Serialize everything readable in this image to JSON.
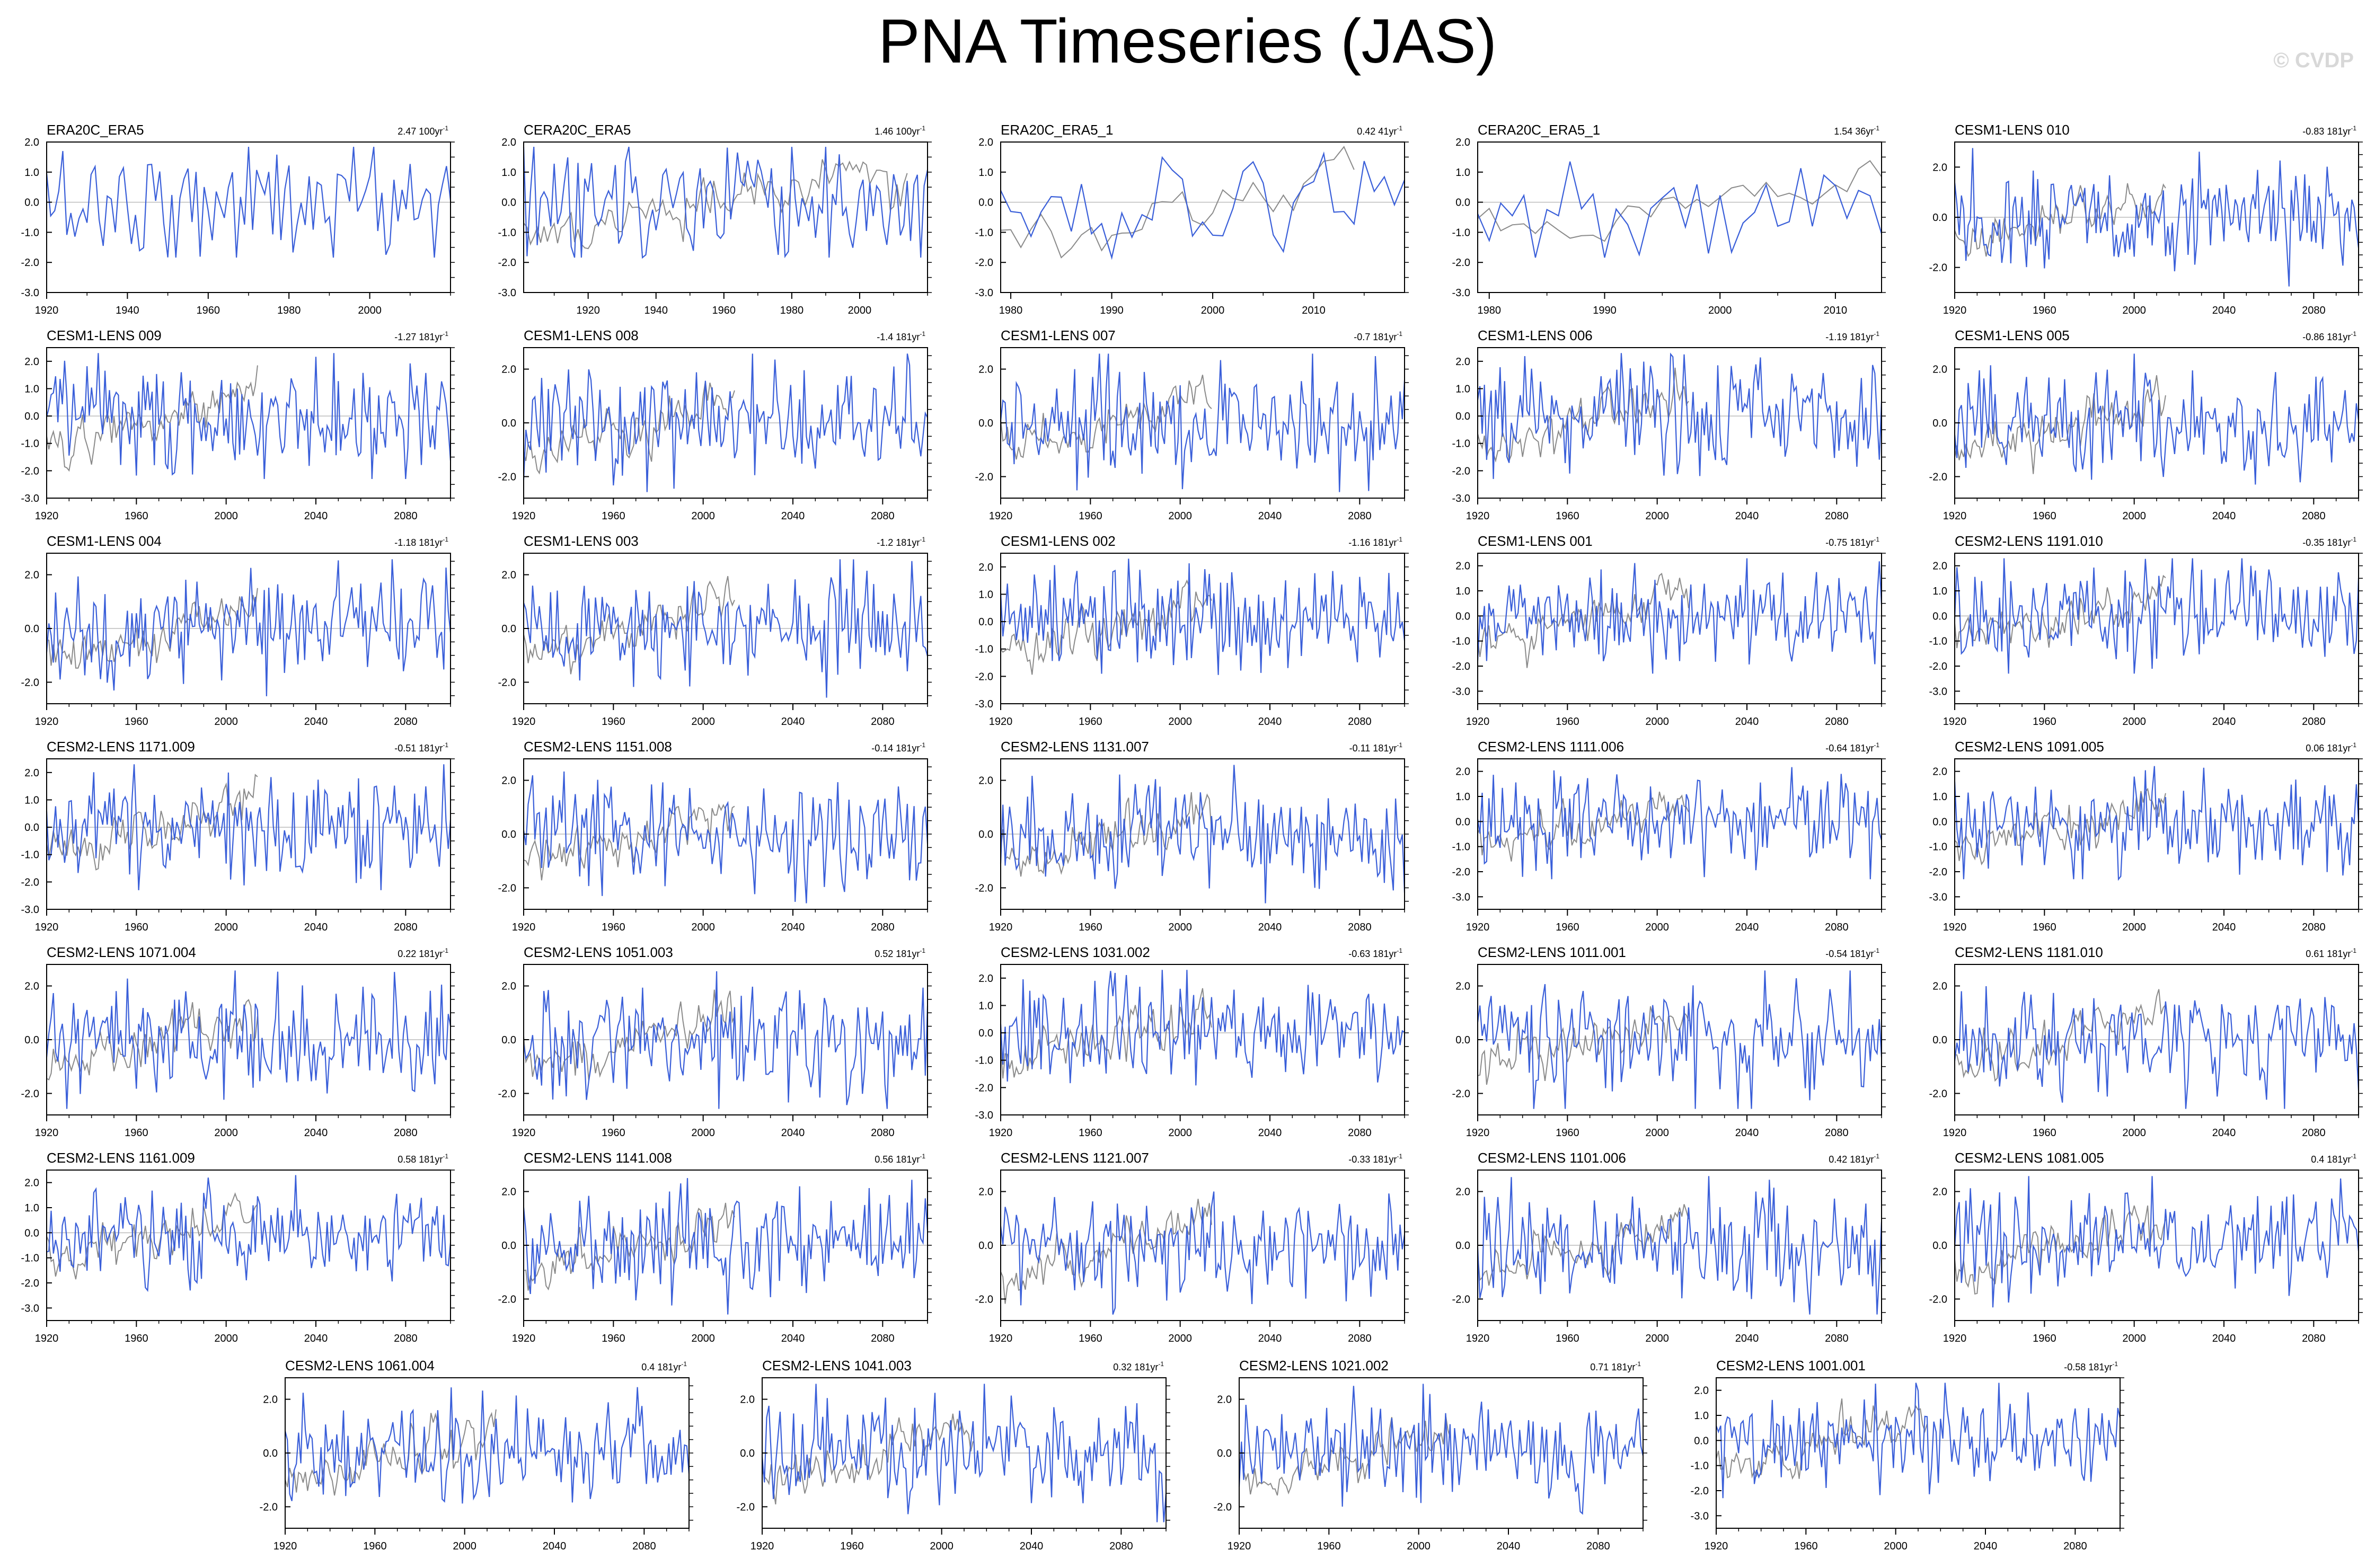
{
  "title": "PNA Timeseries (JAS)",
  "credit": "© CVDP",
  "colors": {
    "observed": "#3a5fd9",
    "reference": "#8a8a8a",
    "zero_line": "#bbbbbb",
    "frame": "#000000"
  },
  "chart_data": [
    {
      "type": "line",
      "name": "ERA20C_ERA5",
      "trend": "2.47 100yr",
      "x_range": [
        1920,
        2020
      ],
      "x_ticks": [
        1920,
        1940,
        1960,
        1980,
        2000
      ],
      "ylim": [
        -3,
        2
      ],
      "y_ticks": [
        -3,
        -2,
        -1,
        0,
        1,
        2
      ],
      "y_tick_labels": [
        "-3.0",
        "-2.0",
        "-1.0",
        "0.0",
        "1.0",
        "2.0"
      ],
      "series_shown": [
        "observed"
      ]
    },
    {
      "type": "line",
      "name": "CERA20C_ERA5",
      "trend": "1.46 100yr",
      "x_range": [
        1901,
        2020
      ],
      "x_ticks": [
        1920,
        1940,
        1960,
        1980,
        2000
      ],
      "ylim": [
        -3,
        2
      ],
      "y_ticks": [
        -3,
        -2,
        -1,
        0,
        1,
        2
      ],
      "y_tick_labels": [
        "-3.0",
        "-2.0",
        "-1.0",
        "0.0",
        "1.0",
        "2.0"
      ],
      "series_shown": [
        "observed",
        "reference"
      ]
    },
    {
      "type": "line",
      "name": "ERA20C_ERA5_1",
      "trend": "0.42 41yr",
      "x_range": [
        1979,
        2019
      ],
      "x_ticks": [
        1980,
        1990,
        2000,
        2010
      ],
      "ylim": [
        -3,
        2
      ],
      "y_ticks": [
        -3,
        -2,
        -1,
        0,
        1,
        2
      ],
      "y_tick_labels": [
        "-3.0",
        "-2.0",
        "-1.0",
        "0.0",
        "1.0",
        "2.0"
      ],
      "series_shown": [
        "observed",
        "reference"
      ]
    },
    {
      "type": "line",
      "name": "CERA20C_ERA5_1",
      "trend": "1.54 36yr",
      "x_range": [
        1979,
        2014
      ],
      "x_ticks": [
        1980,
        1990,
        2000,
        2010
      ],
      "ylim": [
        -3,
        2
      ],
      "y_ticks": [
        -3,
        -2,
        -1,
        0,
        1,
        2
      ],
      "y_tick_labels": [
        "-3.0",
        "-2.0",
        "-1.0",
        "0.0",
        "1.0",
        "2.0"
      ],
      "series_shown": [
        "observed",
        "reference"
      ]
    },
    {
      "type": "line",
      "name": "CESM1-LENS 010",
      "trend": "-0.83 181yr",
      "x_range": [
        1920,
        2100
      ],
      "x_ticks": [
        1920,
        1960,
        2000,
        2040,
        2080
      ],
      "ylim": [
        -3,
        3
      ],
      "y_ticks": [
        -2,
        0,
        2
      ],
      "y_tick_labels": [
        "-2.0",
        "0.0",
        "2.0"
      ],
      "series_shown": [
        "observed",
        "reference"
      ]
    },
    {
      "type": "line",
      "name": "CESM1-LENS 009",
      "trend": "-1.27 181yr",
      "x_range": [
        1920,
        2100
      ],
      "x_ticks": [
        1920,
        1960,
        2000,
        2040,
        2080
      ],
      "ylim": [
        -3,
        2.5
      ],
      "y_ticks": [
        -3,
        -2,
        -1,
        0,
        1,
        2
      ],
      "y_tick_labels": [
        "-3.0",
        "-2.0",
        "-1.0",
        "0.0",
        "1.0",
        "2.0"
      ],
      "series_shown": [
        "observed",
        "reference"
      ]
    },
    {
      "type": "line",
      "name": "CESM1-LENS 008",
      "trend": "-1.4 181yr",
      "x_range": [
        1920,
        2100
      ],
      "x_ticks": [
        1920,
        1960,
        2000,
        2040,
        2080
      ],
      "ylim": [
        -2.8,
        2.8
      ],
      "y_ticks": [
        -2,
        0,
        2
      ],
      "y_tick_labels": [
        "-2.0",
        "0.0",
        "2.0"
      ],
      "series_shown": [
        "observed",
        "reference"
      ]
    },
    {
      "type": "line",
      "name": "CESM1-LENS 007",
      "trend": "-0.7 181yr",
      "x_range": [
        1920,
        2100
      ],
      "x_ticks": [
        1920,
        1960,
        2000,
        2040,
        2080
      ],
      "ylim": [
        -2.8,
        2.8
      ],
      "y_ticks": [
        -2,
        0,
        2
      ],
      "y_tick_labels": [
        "-2.0",
        "0.0",
        "2.0"
      ],
      "series_shown": [
        "observed",
        "reference"
      ]
    },
    {
      "type": "line",
      "name": "CESM1-LENS 006",
      "trend": "-1.19 181yr",
      "x_range": [
        1920,
        2100
      ],
      "x_ticks": [
        1920,
        1960,
        2000,
        2040,
        2080
      ],
      "ylim": [
        -3,
        2.5
      ],
      "y_ticks": [
        -3,
        -2,
        -1,
        0,
        1,
        2
      ],
      "y_tick_labels": [
        "-3.0",
        "-2.0",
        "-1.0",
        "0.0",
        "1.0",
        "2.0"
      ],
      "series_shown": [
        "observed",
        "reference"
      ]
    },
    {
      "type": "line",
      "name": "CESM1-LENS 005",
      "trend": "-0.86 181yr",
      "x_range": [
        1920,
        2100
      ],
      "x_ticks": [
        1920,
        1960,
        2000,
        2040,
        2080
      ],
      "ylim": [
        -2.8,
        2.8
      ],
      "y_ticks": [
        -2,
        0,
        2
      ],
      "y_tick_labels": [
        "-2.0",
        "0.0",
        "2.0"
      ],
      "series_shown": [
        "observed",
        "reference"
      ]
    },
    {
      "type": "line",
      "name": "CESM1-LENS 004",
      "trend": "-1.18 181yr",
      "x_range": [
        1920,
        2100
      ],
      "x_ticks": [
        1920,
        1960,
        2000,
        2040,
        2080
      ],
      "ylim": [
        -2.8,
        2.8
      ],
      "y_ticks": [
        -2,
        0,
        2
      ],
      "y_tick_labels": [
        "-2.0",
        "0.0",
        "2.0"
      ],
      "series_shown": [
        "observed",
        "reference"
      ]
    },
    {
      "type": "line",
      "name": "CESM1-LENS 003",
      "trend": "-1.2 181yr",
      "x_range": [
        1920,
        2100
      ],
      "x_ticks": [
        1920,
        1960,
        2000,
        2040,
        2080
      ],
      "ylim": [
        -2.8,
        2.8
      ],
      "y_ticks": [
        -2,
        0,
        2
      ],
      "y_tick_labels": [
        "-2.0",
        "0.0",
        "2.0"
      ],
      "series_shown": [
        "observed",
        "reference"
      ]
    },
    {
      "type": "line",
      "name": "CESM1-LENS 002",
      "trend": "-1.16 181yr",
      "x_range": [
        1920,
        2100
      ],
      "x_ticks": [
        1920,
        1960,
        2000,
        2040,
        2080
      ],
      "ylim": [
        -3,
        2.5
      ],
      "y_ticks": [
        -3,
        -2,
        -1,
        0,
        1,
        2
      ],
      "y_tick_labels": [
        "-3.0",
        "-2.0",
        "-1.0",
        "0.0",
        "1.0",
        "2.0"
      ],
      "series_shown": [
        "observed",
        "reference"
      ]
    },
    {
      "type": "line",
      "name": "CESM1-LENS 001",
      "trend": "-0.75 181yr",
      "x_range": [
        1920,
        2100
      ],
      "x_ticks": [
        1920,
        1960,
        2000,
        2040,
        2080
      ],
      "ylim": [
        -3.5,
        2.5
      ],
      "y_ticks": [
        -3,
        -2,
        -1,
        0,
        1,
        2
      ],
      "y_tick_labels": [
        "-3.0",
        "-2.0",
        "-1.0",
        "0.0",
        "1.0",
        "2.0"
      ],
      "series_shown": [
        "observed",
        "reference"
      ]
    },
    {
      "type": "line",
      "name": "CESM2-LENS 1191.010",
      "trend": "-0.35 181yr",
      "x_range": [
        1920,
        2100
      ],
      "x_ticks": [
        1920,
        1960,
        2000,
        2040,
        2080
      ],
      "ylim": [
        -3.5,
        2.5
      ],
      "y_ticks": [
        -3,
        -2,
        -1,
        0,
        1,
        2
      ],
      "y_tick_labels": [
        "-3.0",
        "-2.0",
        "-1.0",
        "0.0",
        "1.0",
        "2.0"
      ],
      "series_shown": [
        "observed",
        "reference"
      ]
    },
    {
      "type": "line",
      "name": "CESM2-LENS 1171.009",
      "trend": "-0.51 181yr",
      "x_range": [
        1920,
        2100
      ],
      "x_ticks": [
        1920,
        1960,
        2000,
        2040,
        2080
      ],
      "ylim": [
        -3,
        2.5
      ],
      "y_ticks": [
        -3,
        -2,
        -1,
        0,
        1,
        2
      ],
      "y_tick_labels": [
        "-3.0",
        "-2.0",
        "-1.0",
        "0.0",
        "1.0",
        "2.0"
      ],
      "series_shown": [
        "observed",
        "reference"
      ]
    },
    {
      "type": "line",
      "name": "CESM2-LENS 1151.008",
      "trend": "-0.14 181yr",
      "x_range": [
        1920,
        2100
      ],
      "x_ticks": [
        1920,
        1960,
        2000,
        2040,
        2080
      ],
      "ylim": [
        -2.8,
        2.8
      ],
      "y_ticks": [
        -2,
        0,
        2
      ],
      "y_tick_labels": [
        "-2.0",
        "0.0",
        "2.0"
      ],
      "series_shown": [
        "observed",
        "reference"
      ]
    },
    {
      "type": "line",
      "name": "CESM2-LENS 1131.007",
      "trend": "-0.11 181yr",
      "x_range": [
        1920,
        2100
      ],
      "x_ticks": [
        1920,
        1960,
        2000,
        2040,
        2080
      ],
      "ylim": [
        -2.8,
        2.8
      ],
      "y_ticks": [
        -2,
        0,
        2
      ],
      "y_tick_labels": [
        "-2.0",
        "0.0",
        "2.0"
      ],
      "series_shown": [
        "observed",
        "reference"
      ]
    },
    {
      "type": "line",
      "name": "CESM2-LENS 1111.006",
      "trend": "-0.64 181yr",
      "x_range": [
        1920,
        2100
      ],
      "x_ticks": [
        1920,
        1960,
        2000,
        2040,
        2080
      ],
      "ylim": [
        -3.5,
        2.5
      ],
      "y_ticks": [
        -3,
        -2,
        -1,
        0,
        1,
        2
      ],
      "y_tick_labels": [
        "-3.0",
        "-2.0",
        "-1.0",
        "0.0",
        "1.0",
        "2.0"
      ],
      "series_shown": [
        "observed",
        "reference"
      ]
    },
    {
      "type": "line",
      "name": "CESM2-LENS 1091.005",
      "trend": "0.06 181yr",
      "x_range": [
        1920,
        2100
      ],
      "x_ticks": [
        1920,
        1960,
        2000,
        2040,
        2080
      ],
      "ylim": [
        -3.5,
        2.5
      ],
      "y_ticks": [
        -3,
        -2,
        -1,
        0,
        1,
        2
      ],
      "y_tick_labels": [
        "-3.0",
        "-2.0",
        "-1.0",
        "0.0",
        "1.0",
        "2.0"
      ],
      "series_shown": [
        "observed",
        "reference"
      ]
    },
    {
      "type": "line",
      "name": "CESM2-LENS 1071.004",
      "trend": "0.22 181yr",
      "x_range": [
        1920,
        2100
      ],
      "x_ticks": [
        1920,
        1960,
        2000,
        2040,
        2080
      ],
      "ylim": [
        -2.8,
        2.8
      ],
      "y_ticks": [
        -2,
        0,
        2
      ],
      "y_tick_labels": [
        "-2.0",
        "0.0",
        "2.0"
      ],
      "series_shown": [
        "observed",
        "reference"
      ]
    },
    {
      "type": "line",
      "name": "CESM2-LENS 1051.003",
      "trend": "0.52 181yr",
      "x_range": [
        1920,
        2100
      ],
      "x_ticks": [
        1920,
        1960,
        2000,
        2040,
        2080
      ],
      "ylim": [
        -2.8,
        2.8
      ],
      "y_ticks": [
        -2,
        0,
        2
      ],
      "y_tick_labels": [
        "-2.0",
        "0.0",
        "2.0"
      ],
      "series_shown": [
        "observed",
        "reference"
      ]
    },
    {
      "type": "line",
      "name": "CESM2-LENS 1031.002",
      "trend": "-0.63 181yr",
      "x_range": [
        1920,
        2100
      ],
      "x_ticks": [
        1920,
        1960,
        2000,
        2040,
        2080
      ],
      "ylim": [
        -3,
        2.5
      ],
      "y_ticks": [
        -3,
        -2,
        -1,
        0,
        1,
        2
      ],
      "y_tick_labels": [
        "-3.0",
        "-2.0",
        "-1.0",
        "0.0",
        "1.0",
        "2.0"
      ],
      "series_shown": [
        "observed",
        "reference"
      ]
    },
    {
      "type": "line",
      "name": "CESM2-LENS 1011.001",
      "trend": "-0.54 181yr",
      "x_range": [
        1920,
        2100
      ],
      "x_ticks": [
        1920,
        1960,
        2000,
        2040,
        2080
      ],
      "ylim": [
        -2.8,
        2.8
      ],
      "y_ticks": [
        -2,
        0,
        2
      ],
      "y_tick_labels": [
        "-2.0",
        "0.0",
        "2.0"
      ],
      "series_shown": [
        "observed",
        "reference"
      ]
    },
    {
      "type": "line",
      "name": "CESM2-LENS 1181.010",
      "trend": "0.61 181yr",
      "x_range": [
        1920,
        2100
      ],
      "x_ticks": [
        1920,
        1960,
        2000,
        2040,
        2080
      ],
      "ylim": [
        -2.8,
        2.8
      ],
      "y_ticks": [
        -2,
        0,
        2
      ],
      "y_tick_labels": [
        "-2.0",
        "0.0",
        "2.0"
      ],
      "series_shown": [
        "observed",
        "reference"
      ]
    },
    {
      "type": "line",
      "name": "CESM2-LENS 1161.009",
      "trend": "0.58 181yr",
      "x_range": [
        1920,
        2100
      ],
      "x_ticks": [
        1920,
        1960,
        2000,
        2040,
        2080
      ],
      "ylim": [
        -3.5,
        2.5
      ],
      "y_ticks": [
        -3,
        -2,
        -1,
        0,
        1,
        2
      ],
      "y_tick_labels": [
        "-3.0",
        "-2.0",
        "-1.0",
        "0.0",
        "1.0",
        "2.0"
      ],
      "series_shown": [
        "observed",
        "reference"
      ]
    },
    {
      "type": "line",
      "name": "CESM2-LENS 1141.008",
      "trend": "0.56 181yr",
      "x_range": [
        1920,
        2100
      ],
      "x_ticks": [
        1920,
        1960,
        2000,
        2040,
        2080
      ],
      "ylim": [
        -2.8,
        2.8
      ],
      "y_ticks": [
        -2,
        0,
        2
      ],
      "y_tick_labels": [
        "-2.0",
        "0.0",
        "2.0"
      ],
      "series_shown": [
        "observed",
        "reference"
      ]
    },
    {
      "type": "line",
      "name": "CESM2-LENS 1121.007",
      "trend": "-0.33 181yr",
      "x_range": [
        1920,
        2100
      ],
      "x_ticks": [
        1920,
        1960,
        2000,
        2040,
        2080
      ],
      "ylim": [
        -2.8,
        2.8
      ],
      "y_ticks": [
        -2,
        0,
        2
      ],
      "y_tick_labels": [
        "-2.0",
        "0.0",
        "2.0"
      ],
      "series_shown": [
        "observed",
        "reference"
      ]
    },
    {
      "type": "line",
      "name": "CESM2-LENS 1101.006",
      "trend": "0.42 181yr",
      "x_range": [
        1920,
        2100
      ],
      "x_ticks": [
        1920,
        1960,
        2000,
        2040,
        2080
      ],
      "ylim": [
        -2.8,
        2.8
      ],
      "y_ticks": [
        -2,
        0,
        2
      ],
      "y_tick_labels": [
        "-2.0",
        "0.0",
        "2.0"
      ],
      "series_shown": [
        "observed",
        "reference"
      ]
    },
    {
      "type": "line",
      "name": "CESM2-LENS 1081.005",
      "trend": "0.4 181yr",
      "x_range": [
        1920,
        2100
      ],
      "x_ticks": [
        1920,
        1960,
        2000,
        2040,
        2080
      ],
      "ylim": [
        -2.8,
        2.8
      ],
      "y_ticks": [
        -2,
        0,
        2
      ],
      "y_tick_labels": [
        "-2.0",
        "0.0",
        "2.0"
      ],
      "series_shown": [
        "observed",
        "reference"
      ]
    },
    {
      "type": "line",
      "name": "CESM2-LENS 1061.004",
      "trend": "0.4 181yr",
      "x_range": [
        1920,
        2100
      ],
      "x_ticks": [
        1920,
        1960,
        2000,
        2040,
        2080
      ],
      "ylim": [
        -2.8,
        2.8
      ],
      "y_ticks": [
        -2,
        0,
        2
      ],
      "y_tick_labels": [
        "-2.0",
        "0.0",
        "2.0"
      ],
      "series_shown": [
        "observed",
        "reference"
      ]
    },
    {
      "type": "line",
      "name": "CESM2-LENS 1041.003",
      "trend": "0.32 181yr",
      "x_range": [
        1920,
        2100
      ],
      "x_ticks": [
        1920,
        1960,
        2000,
        2040,
        2080
      ],
      "ylim": [
        -2.8,
        2.8
      ],
      "y_ticks": [
        -2,
        0,
        2
      ],
      "y_tick_labels": [
        "-2.0",
        "0.0",
        "2.0"
      ],
      "series_shown": [
        "observed",
        "reference"
      ]
    },
    {
      "type": "line",
      "name": "CESM2-LENS 1021.002",
      "trend": "0.71 181yr",
      "x_range": [
        1920,
        2100
      ],
      "x_ticks": [
        1920,
        1960,
        2000,
        2040,
        2080
      ],
      "ylim": [
        -2.8,
        2.8
      ],
      "y_ticks": [
        -2,
        0,
        2
      ],
      "y_tick_labels": [
        "-2.0",
        "0.0",
        "2.0"
      ],
      "series_shown": [
        "observed",
        "reference"
      ]
    },
    {
      "type": "line",
      "name": "CESM2-LENS 1001.001",
      "trend": "-0.58 181yr",
      "x_range": [
        1920,
        2100
      ],
      "x_ticks": [
        1920,
        1960,
        2000,
        2040,
        2080
      ],
      "ylim": [
        -3.5,
        2.5
      ],
      "y_ticks": [
        -3,
        -2,
        -1,
        0,
        1,
        2
      ],
      "y_tick_labels": [
        "-3.0",
        "-2.0",
        "-1.0",
        "0.0",
        "1.0",
        "2.0"
      ],
      "series_shown": [
        "observed",
        "reference"
      ]
    }
  ]
}
